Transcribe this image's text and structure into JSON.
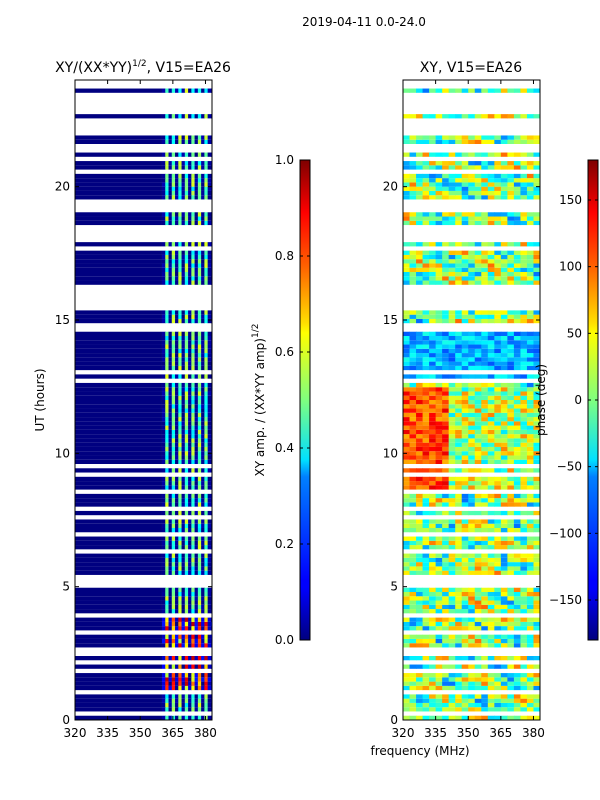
{
  "figure": {
    "suptitle": "2019-04-11 0.0-24.0",
    "shared_xlabel": "frequency (MHz)"
  },
  "chart_data": [
    {
      "type": "heatmap",
      "title_main": "XY/(XX*YY)",
      "title_exp": "1/2",
      "title_tail": ", V15=EA26",
      "xlabel": "frequency (MHz)",
      "ylabel": "UT (hours)",
      "xlim": [
        320,
        383
      ],
      "ylim": [
        0,
        24
      ],
      "xticks": [
        320,
        335,
        350,
        365,
        380
      ],
      "yticks": [
        0,
        5,
        10,
        15,
        20
      ],
      "colormap": "jet",
      "colorbar": {
        "label_main": "XY amp. / (XX*YY amp)",
        "label_exp": "1/2",
        "range": [
          0.0,
          1.0
        ],
        "ticks": [
          "0.0",
          "0.2",
          "0.4",
          "0.6",
          "0.8",
          "1.0"
        ]
      },
      "description_values": {
        "baseline_low_region": [
          320,
          360
        ],
        "active_channels_mhz": [
          361,
          364,
          367,
          370,
          373,
          376,
          379
        ],
        "high_amplitude_hours": [
          1.0,
          4.0
        ]
      }
    },
    {
      "type": "heatmap",
      "title": "XY, V15=EA26",
      "xlabel": "frequency (MHz)",
      "ylabel": "",
      "xlim": [
        320,
        383
      ],
      "ylim": [
        0,
        24
      ],
      "xticks": [
        320,
        335,
        350,
        365,
        380
      ],
      "yticks": [
        0,
        5,
        10,
        15,
        20
      ],
      "colormap": "jet",
      "colorbar": {
        "label": "phase (deg)",
        "range": [
          -180,
          180
        ],
        "ticks": [
          "−150",
          "−100",
          "−50",
          "0",
          "50",
          "100",
          "150"
        ],
        "tick_values": [
          -150,
          -100,
          -50,
          0,
          50,
          100,
          150
        ]
      }
    }
  ],
  "colors": {
    "jet_low": "#00007f",
    "jet_high": "#7f0000",
    "background": "#ffffff",
    "frame": "#000000"
  }
}
